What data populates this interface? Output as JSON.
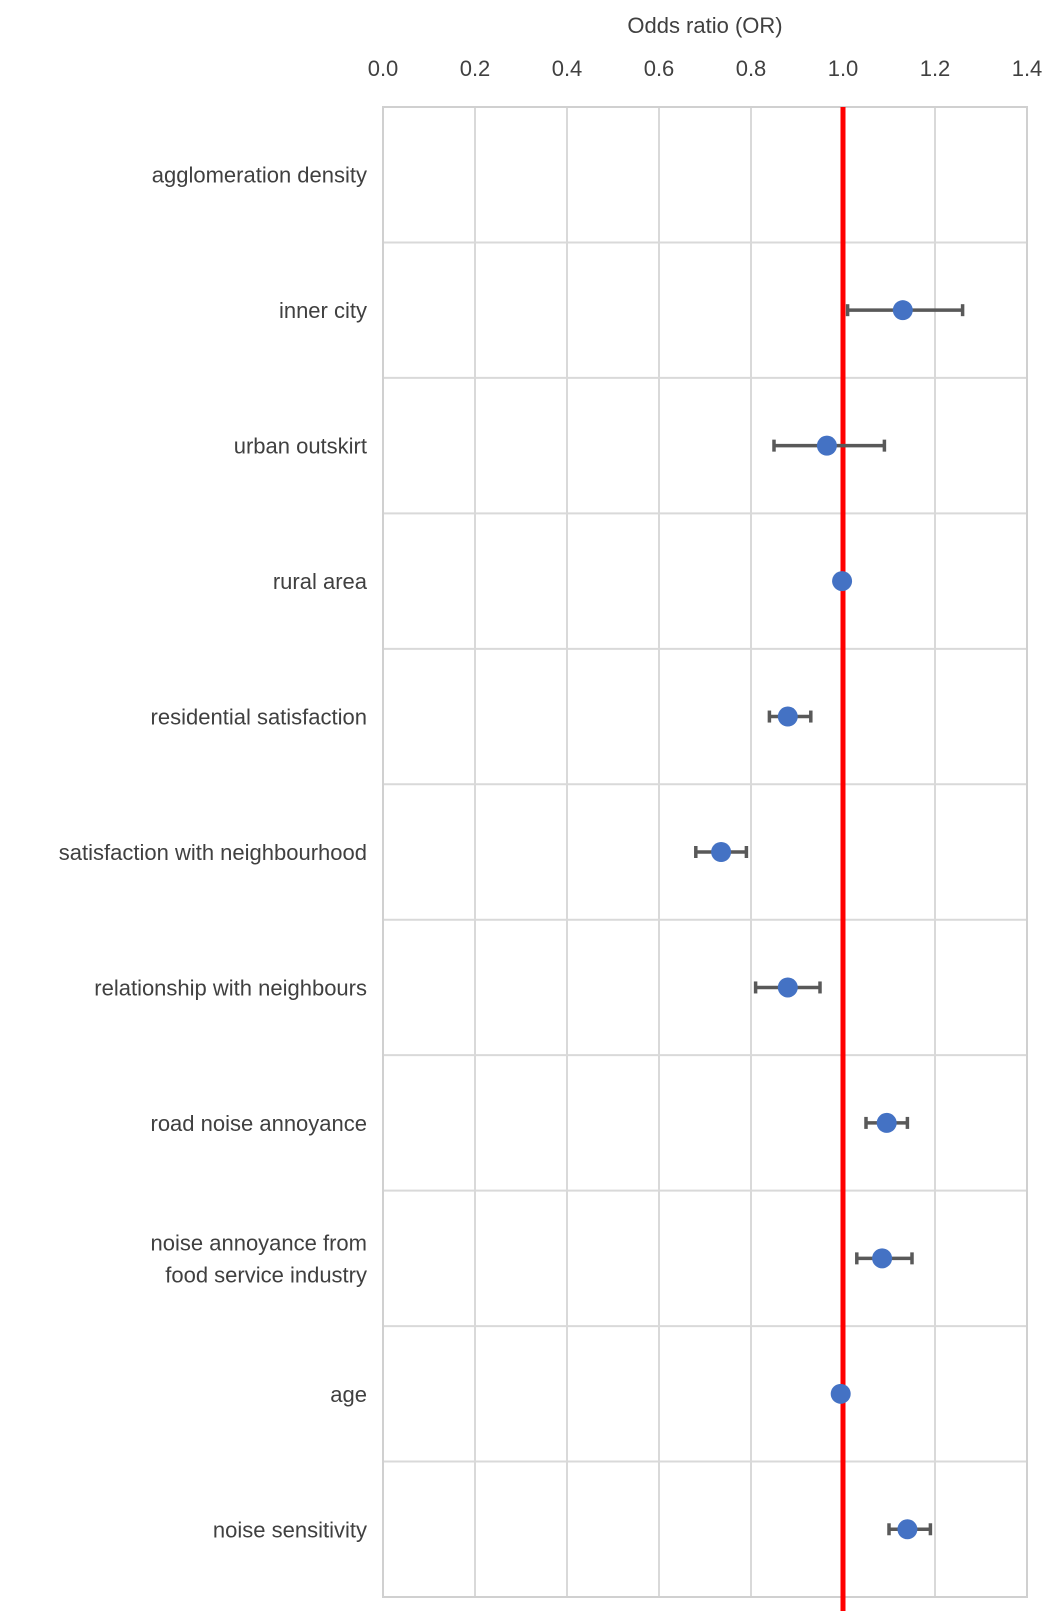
{
  "colors": {
    "grid": "#d9d9d9",
    "frame": "#d0d0d0",
    "point": "#4472c4",
    "errorbar": "#595959",
    "reference": "#ff0000",
    "text": "#404040"
  },
  "chart_data": {
    "type": "scatter",
    "subtype": "forest-plot",
    "title": "",
    "xlabel": "Odds ratio (OR)",
    "ylabel": "",
    "xlim": [
      0.0,
      1.4
    ],
    "xticks": [
      "0.0",
      "0.2",
      "0.4",
      "0.6",
      "0.8",
      "1.0",
      "1.2",
      "1.4"
    ],
    "xtick_values": [
      0.0,
      0.2,
      0.4,
      0.6,
      0.8,
      1.0,
      1.2,
      1.4
    ],
    "axis_position": "top",
    "grid": true,
    "reference_line": 1.0,
    "categories": [
      [
        "agglomeration density"
      ],
      [
        "inner city"
      ],
      [
        "urban outskirt"
      ],
      [
        "rural area"
      ],
      [
        "residential satisfaction"
      ],
      [
        "satisfaction with neighbourhood"
      ],
      [
        "relationship with neighbours"
      ],
      [
        "road noise annoyance"
      ],
      [
        "noise annoyance from",
        "food service industry"
      ],
      [
        "age"
      ],
      [
        "noise sensitivity"
      ]
    ],
    "series": [
      {
        "name": "OR",
        "values": [
          null,
          1.13,
          0.965,
          0.998,
          0.88,
          0.735,
          0.88,
          1.095,
          1.085,
          0.995,
          1.14
        ],
        "ci_low": [
          null,
          1.01,
          0.85,
          null,
          0.84,
          0.68,
          0.81,
          1.05,
          1.03,
          null,
          1.1
        ],
        "ci_high": [
          null,
          1.26,
          1.09,
          null,
          0.93,
          0.79,
          0.95,
          1.14,
          1.15,
          null,
          1.19
        ]
      }
    ]
  }
}
